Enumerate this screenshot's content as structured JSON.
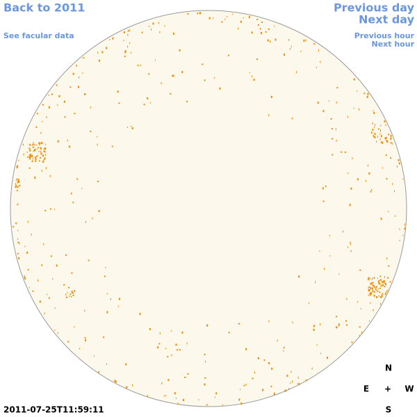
{
  "nav": {
    "back_year": "Back to 2011",
    "facular_data": "See facular data",
    "previous_day": "Previous day",
    "next_day": "Next day",
    "previous_hour": "Previous hour",
    "next_hour": "Next hour"
  },
  "timestamp": "2011-07-25T11:59:11",
  "compass": {
    "north": "N",
    "east": "E",
    "center": "+",
    "west": "W",
    "south": "S"
  }
}
